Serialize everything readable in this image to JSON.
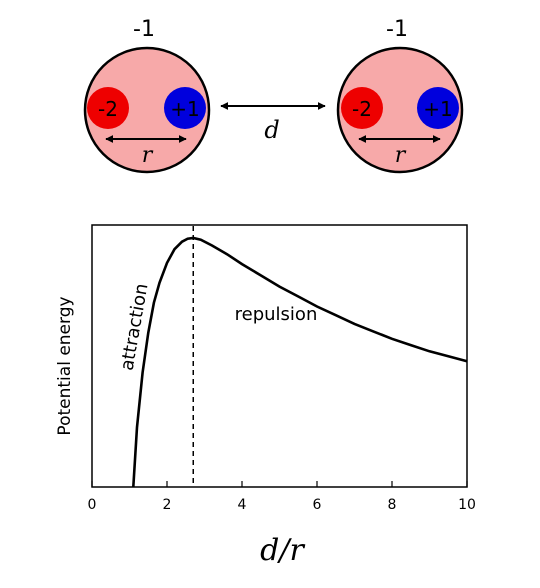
{
  "molecules": [
    {
      "charge": "-1",
      "negative_charge": "-2",
      "positive_charge": "+1",
      "separation_label": "r"
    },
    {
      "charge": "-1",
      "negative_charge": "-2",
      "positive_charge": "+1",
      "separation_label": "r"
    }
  ],
  "distance_label": "d",
  "colors": {
    "molecule_fill": "#f7a9a9",
    "negative_fill": "#ee0000",
    "positive_fill": "#0000dd",
    "outline": "#000000"
  },
  "chart_data": {
    "type": "line",
    "xlabel": "d/r",
    "ylabel": "Potential energy",
    "xlim": [
      0,
      10
    ],
    "xticks": [
      "0",
      "2",
      "4",
      "6",
      "8",
      "10"
    ],
    "yticks": [],
    "grid": false,
    "peak_marker_x": 2.7,
    "annotations": [
      "attraction",
      "repulsion"
    ],
    "series": [
      {
        "x": [
          1.1,
          1.2,
          1.35,
          1.5,
          1.65,
          1.8,
          2.0,
          2.2,
          2.4,
          2.55,
          2.7,
          2.9,
          3.2,
          3.6,
          4.0,
          4.5,
          5.0,
          5.5,
          6.0,
          6.5,
          7.0,
          7.5,
          8.0,
          8.5,
          9.0,
          9.5,
          10.0
        ],
        "y": [
          0.0,
          0.24,
          0.46,
          0.62,
          0.74,
          0.82,
          0.9,
          0.955,
          0.985,
          0.997,
          1.0,
          0.993,
          0.97,
          0.935,
          0.895,
          0.85,
          0.805,
          0.765,
          0.725,
          0.69,
          0.655,
          0.625,
          0.595,
          0.57,
          0.545,
          0.525,
          0.505
        ]
      }
    ]
  }
}
